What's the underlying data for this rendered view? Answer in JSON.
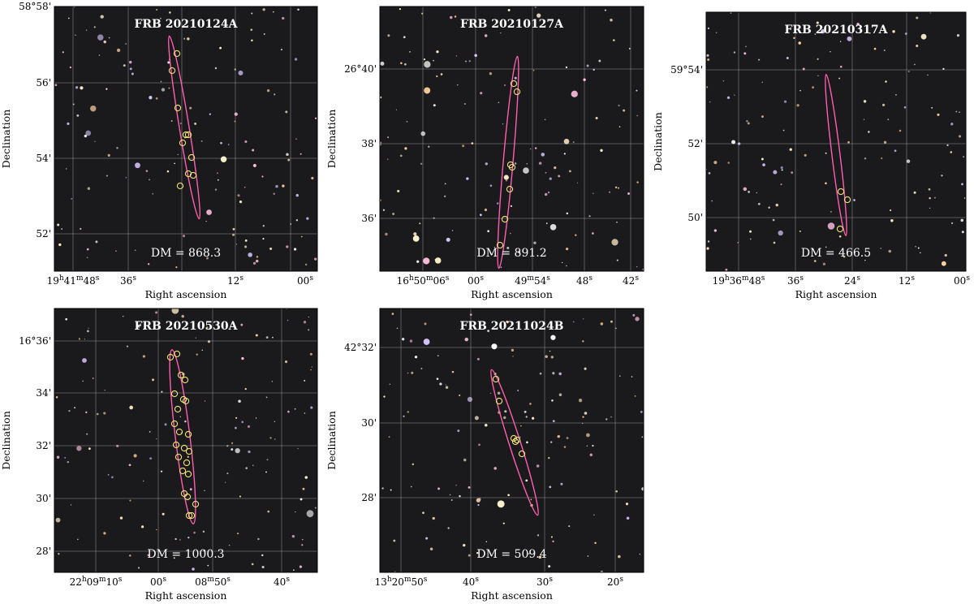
{
  "panels": [
    {
      "title": "FRB 20210124A",
      "dm": "DM = 868.3",
      "xlabel": "Right ascension",
      "ylabel": "Declination",
      "xticks": [
        "19h41m48s",
        "36s",
        "12s",
        "00s"
      ],
      "yticks": [
        "58°58'",
        "56'",
        "54'",
        "52'"
      ]
    },
    {
      "title": "FRB 20210127A",
      "dm": "DM = 891.2",
      "xlabel": "Right ascension",
      "ylabel": "Declination",
      "xticks": [
        "16h50m06s",
        "00s",
        "49m54s",
        "48s",
        "42s"
      ],
      "yticks": [
        "26°40'",
        "38'",
        "36'"
      ]
    },
    {
      "title": "FRB 20210317A",
      "dm": "DM = 466.5",
      "xlabel": "Right ascension",
      "ylabel": "Declination",
      "xticks": [
        "19h36m48s",
        "36s",
        "24s",
        "12s",
        "00s"
      ],
      "yticks": [
        "59°54'",
        "52'",
        "50'"
      ]
    },
    {
      "title": "FRB 20210530A",
      "dm": "DM = 1000.3",
      "xlabel": "Right ascension",
      "ylabel": "Declination",
      "xticks": [
        "22h09m10s",
        "00s",
        "08m50s",
        "40s"
      ],
      "yticks": [
        "16°36'",
        "34'",
        "32'",
        "30'",
        "28'"
      ]
    },
    {
      "title": "FRB 20211024B",
      "dm": "DM = 509.4",
      "xlabel": "Right ascension",
      "ylabel": "Declination",
      "xticks": [
        "13h20m50s",
        "40s",
        "30s",
        "20s"
      ],
      "yticks": [
        "42°32'",
        "30'",
        "28'"
      ]
    }
  ]
}
